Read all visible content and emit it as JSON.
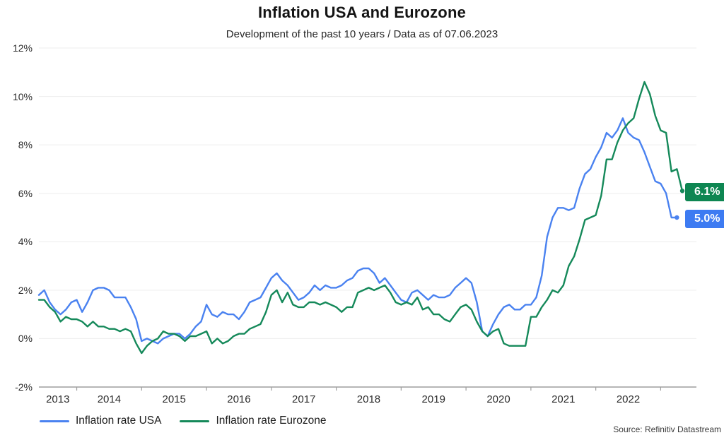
{
  "source_note": "Source: Refinitiv Datastream",
  "colors": {
    "usa_line": "#4a82f0",
    "eurozone_line": "#15895a",
    "usa_badge_bg": "#3d7bf2",
    "eurozone_badge_bg": "#0e8652",
    "badge_text": "#ffffff",
    "gridline": "#ededed",
    "axis_line": "#9e9e9e",
    "background": "#ffffff"
  },
  "chart_data": {
    "type": "line",
    "title": "Inflation USA and Eurozone",
    "subtitle": "Development of the past 10 years / Data as of 07.06.2023",
    "frequency": "monthly",
    "x_start": "2013-06",
    "x_end": "2023-05",
    "ylim": [
      -2,
      12
    ],
    "grid": true,
    "legend_position": "bottom-left",
    "y_ticks": [
      12,
      10,
      8,
      6,
      4,
      2,
      0,
      -2
    ],
    "y_tick_labels": [
      "12%",
      "10%",
      "8%",
      "6%",
      "4%",
      "2%",
      "0%",
      "-2%"
    ],
    "x_tick_labels": [
      "2013",
      "2014",
      "2015",
      "2016",
      "2017",
      "2018",
      "2019",
      "2020",
      "2021",
      "2022"
    ],
    "series": [
      {
        "name": "Inflation rate USA",
        "end_label": "5.0%",
        "values": [
          1.8,
          2.0,
          1.5,
          1.2,
          1.0,
          1.2,
          1.5,
          1.6,
          1.1,
          1.5,
          2.0,
          2.1,
          2.1,
          2.0,
          1.7,
          1.7,
          1.7,
          1.3,
          0.8,
          -0.1,
          0.0,
          -0.1,
          -0.2,
          0.0,
          0.1,
          0.2,
          0.2,
          0.0,
          0.2,
          0.5,
          0.7,
          1.4,
          1.0,
          0.9,
          1.1,
          1.0,
          1.0,
          0.8,
          1.1,
          1.5,
          1.6,
          1.7,
          2.1,
          2.5,
          2.7,
          2.4,
          2.2,
          1.9,
          1.6,
          1.7,
          1.9,
          2.2,
          2.0,
          2.2,
          2.1,
          2.1,
          2.2,
          2.4,
          2.5,
          2.8,
          2.9,
          2.9,
          2.7,
          2.3,
          2.5,
          2.2,
          1.9,
          1.6,
          1.5,
          1.9,
          2.0,
          1.8,
          1.6,
          1.8,
          1.7,
          1.7,
          1.8,
          2.1,
          2.3,
          2.5,
          2.3,
          1.5,
          0.3,
          0.1,
          0.6,
          1.0,
          1.3,
          1.4,
          1.2,
          1.2,
          1.4,
          1.4,
          1.7,
          2.6,
          4.2,
          5.0,
          5.4,
          5.4,
          5.3,
          5.4,
          6.2,
          6.8,
          7.0,
          7.5,
          7.9,
          8.5,
          8.3,
          8.6,
          9.1,
          8.5,
          8.3,
          8.2,
          7.7,
          7.1,
          6.5,
          6.4,
          6.0,
          5.0,
          5.0
        ]
      },
      {
        "name": "Inflation rate Eurozone",
        "end_label": "6.1%",
        "values": [
          1.6,
          1.6,
          1.3,
          1.1,
          0.7,
          0.9,
          0.8,
          0.8,
          0.7,
          0.5,
          0.7,
          0.5,
          0.5,
          0.4,
          0.4,
          0.3,
          0.4,
          0.3,
          -0.2,
          -0.6,
          -0.3,
          -0.1,
          0.0,
          0.3,
          0.2,
          0.2,
          0.1,
          -0.1,
          0.1,
          0.1,
          0.2,
          0.3,
          -0.2,
          0.0,
          -0.2,
          -0.1,
          0.1,
          0.2,
          0.2,
          0.4,
          0.5,
          0.6,
          1.1,
          1.8,
          2.0,
          1.5,
          1.9,
          1.4,
          1.3,
          1.3,
          1.5,
          1.5,
          1.4,
          1.5,
          1.4,
          1.3,
          1.1,
          1.3,
          1.3,
          1.9,
          2.0,
          2.1,
          2.0,
          2.1,
          2.2,
          1.9,
          1.5,
          1.4,
          1.5,
          1.4,
          1.7,
          1.2,
          1.3,
          1.0,
          1.0,
          0.8,
          0.7,
          1.0,
          1.3,
          1.4,
          1.2,
          0.7,
          0.3,
          0.1,
          0.3,
          0.4,
          -0.2,
          -0.3,
          -0.3,
          -0.3,
          -0.3,
          0.9,
          0.9,
          1.3,
          1.6,
          2.0,
          1.9,
          2.2,
          3.0,
          3.4,
          4.1,
          4.9,
          5.0,
          5.1,
          5.9,
          7.4,
          7.4,
          8.1,
          8.6,
          8.9,
          9.1,
          9.9,
          10.6,
          10.1,
          9.2,
          8.6,
          8.5,
          6.9,
          7.0,
          6.1
        ]
      }
    ]
  }
}
